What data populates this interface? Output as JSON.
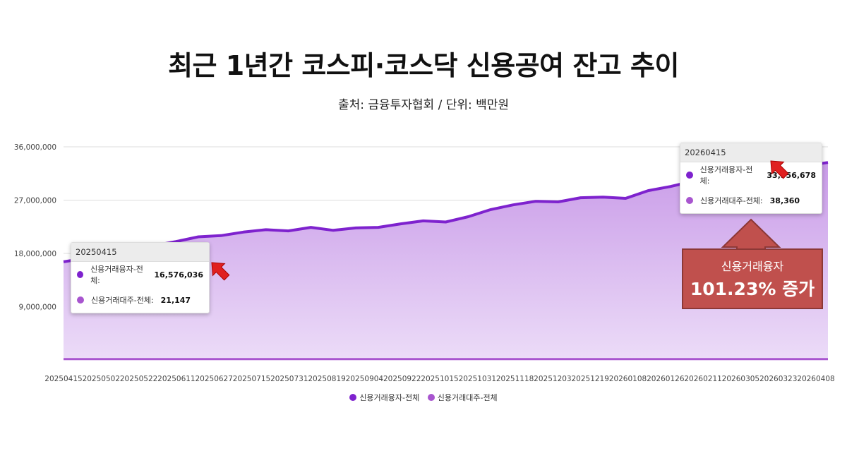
{
  "header": {
    "title": "최근 1년간 코스피·코스닥 신용공여 잔고 추이",
    "subtitle": "출처: 금융투자협회 / 단위: 백만원"
  },
  "chart_data": {
    "type": "area",
    "ylim": [
      0,
      36000000
    ],
    "yticks": [
      {
        "value": 9000000,
        "label": "9,000,000"
      },
      {
        "value": 18000000,
        "label": "18,000,000"
      },
      {
        "value": 27000000,
        "label": "27,000,000"
      },
      {
        "value": 36000000,
        "label": "36,000,000"
      }
    ],
    "x_tick_labels": [
      "20250415",
      "20250502",
      "20250522",
      "20250611",
      "20250627",
      "20250715",
      "20250731",
      "20250819",
      "20250904",
      "20250922",
      "20251015",
      "20251031",
      "20251118",
      "20251203",
      "20251219",
      "20260108",
      "20260126",
      "20260211",
      "20260305",
      "20260323",
      "20260408"
    ],
    "legend_position": "bottom-center",
    "series": [
      {
        "name": "신용거래융자-전체",
        "color": "#7e22ce",
        "values": [
          16576036,
          17200000,
          17800000,
          18600000,
          19300000,
          20000000,
          20800000,
          21000000,
          21600000,
          22000000,
          21800000,
          22400000,
          21900000,
          22300000,
          22400000,
          23000000,
          23500000,
          23300000,
          24200000,
          25400000,
          26200000,
          26800000,
          26700000,
          27400000,
          27500000,
          27300000,
          28600000,
          29300000,
          30200000,
          31200000,
          31600000,
          32000000,
          32400000,
          32800000,
          33356678
        ]
      },
      {
        "name": "신용거래대주-전체",
        "color": "#a855cf",
        "values": [
          21147,
          22000,
          23000,
          24000,
          25000,
          26000,
          27000,
          28000,
          29000,
          30000,
          30500,
          31000,
          31500,
          32000,
          32500,
          33000,
          33500,
          34000,
          34500,
          35000,
          35500,
          36000,
          36200,
          36400,
          36600,
          36800,
          37000,
          37200,
          37400,
          37600,
          37800,
          38000,
          38100,
          38200,
          38360
        ]
      }
    ],
    "tooltips": [
      {
        "date": "20250415",
        "rows": [
          {
            "label": "신용거래융자-전체:",
            "value": "16,576,036"
          },
          {
            "label": "신용거래대주-전체:",
            "value": "21,147"
          }
        ]
      },
      {
        "date": "20260415",
        "rows": [
          {
            "label": "신용거래융자-전체:",
            "value": "33,356,678"
          },
          {
            "label": "신용거래대주-전체:",
            "value": "38,360"
          }
        ]
      }
    ],
    "annotation": {
      "line1": "신용거래융자",
      "line2": "101.23% 증가"
    }
  },
  "colors": {
    "series1": "#7e22ce",
    "series2": "#a855cf",
    "area_fill": "#d7b4ee",
    "arrow": "#e02020",
    "callout": "#c0504d"
  }
}
